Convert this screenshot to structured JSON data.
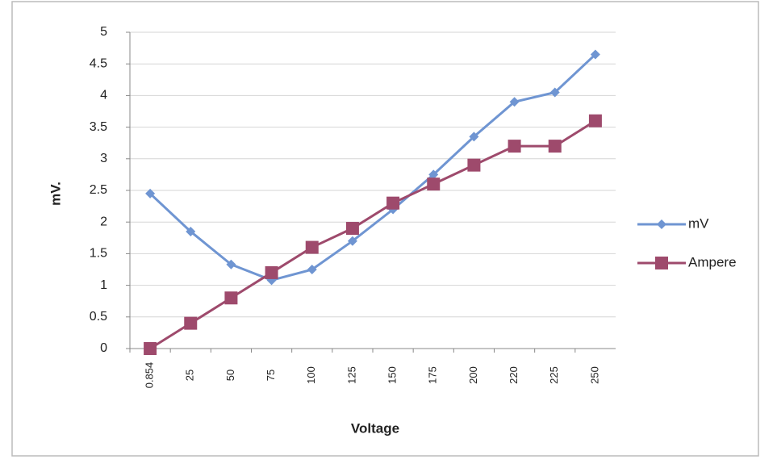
{
  "chart_data": {
    "type": "line",
    "x_label": "Voltage",
    "y_label": "mV.",
    "categories": [
      "0.854",
      "25",
      "50",
      "75",
      "100",
      "125",
      "150",
      "175",
      "200",
      "220",
      "225",
      "250"
    ],
    "series": [
      {
        "name": "mV",
        "color": "#6f95d2",
        "marker": "diamond",
        "values": [
          2.45,
          1.85,
          1.33,
          1.08,
          1.25,
          1.7,
          2.2,
          2.75,
          3.35,
          3.9,
          4.05,
          4.65
        ]
      },
      {
        "name": "Ampere",
        "color": "#9e4a6c",
        "marker": "square",
        "values": [
          0,
          0.4,
          0.8,
          1.2,
          1.6,
          1.9,
          2.3,
          2.6,
          2.9,
          3.2,
          3.2,
          3.6
        ]
      }
    ],
    "ylim": [
      0,
      5
    ],
    "yticks": [
      0,
      0.5,
      1,
      1.5,
      2,
      2.5,
      3,
      3.5,
      4,
      4.5,
      5
    ],
    "grid": true,
    "legend": "right"
  }
}
